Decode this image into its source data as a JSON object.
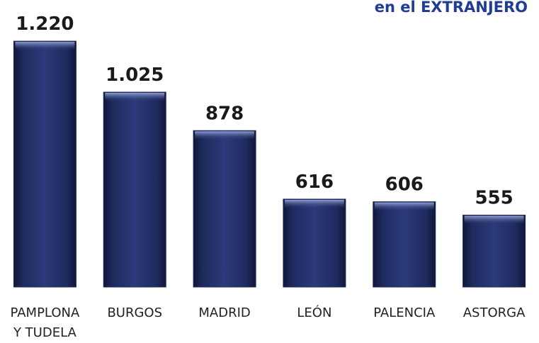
{
  "chart_data": {
    "type": "bar",
    "title": "en el EXTRANJERO",
    "categories": [
      "PAMPLONA Y TUDELA",
      "BURGOS",
      "MADRID",
      "LEÓN",
      "PALENCIA",
      "ASTORGA"
    ],
    "values": [
      1220,
      1025,
      878,
      616,
      606,
      555
    ],
    "value_labels": [
      "1.220",
      "1.025",
      "878",
      "616",
      "606",
      "555"
    ],
    "color": "#1f2a5e",
    "ylim": [
      280,
      1250
    ]
  }
}
